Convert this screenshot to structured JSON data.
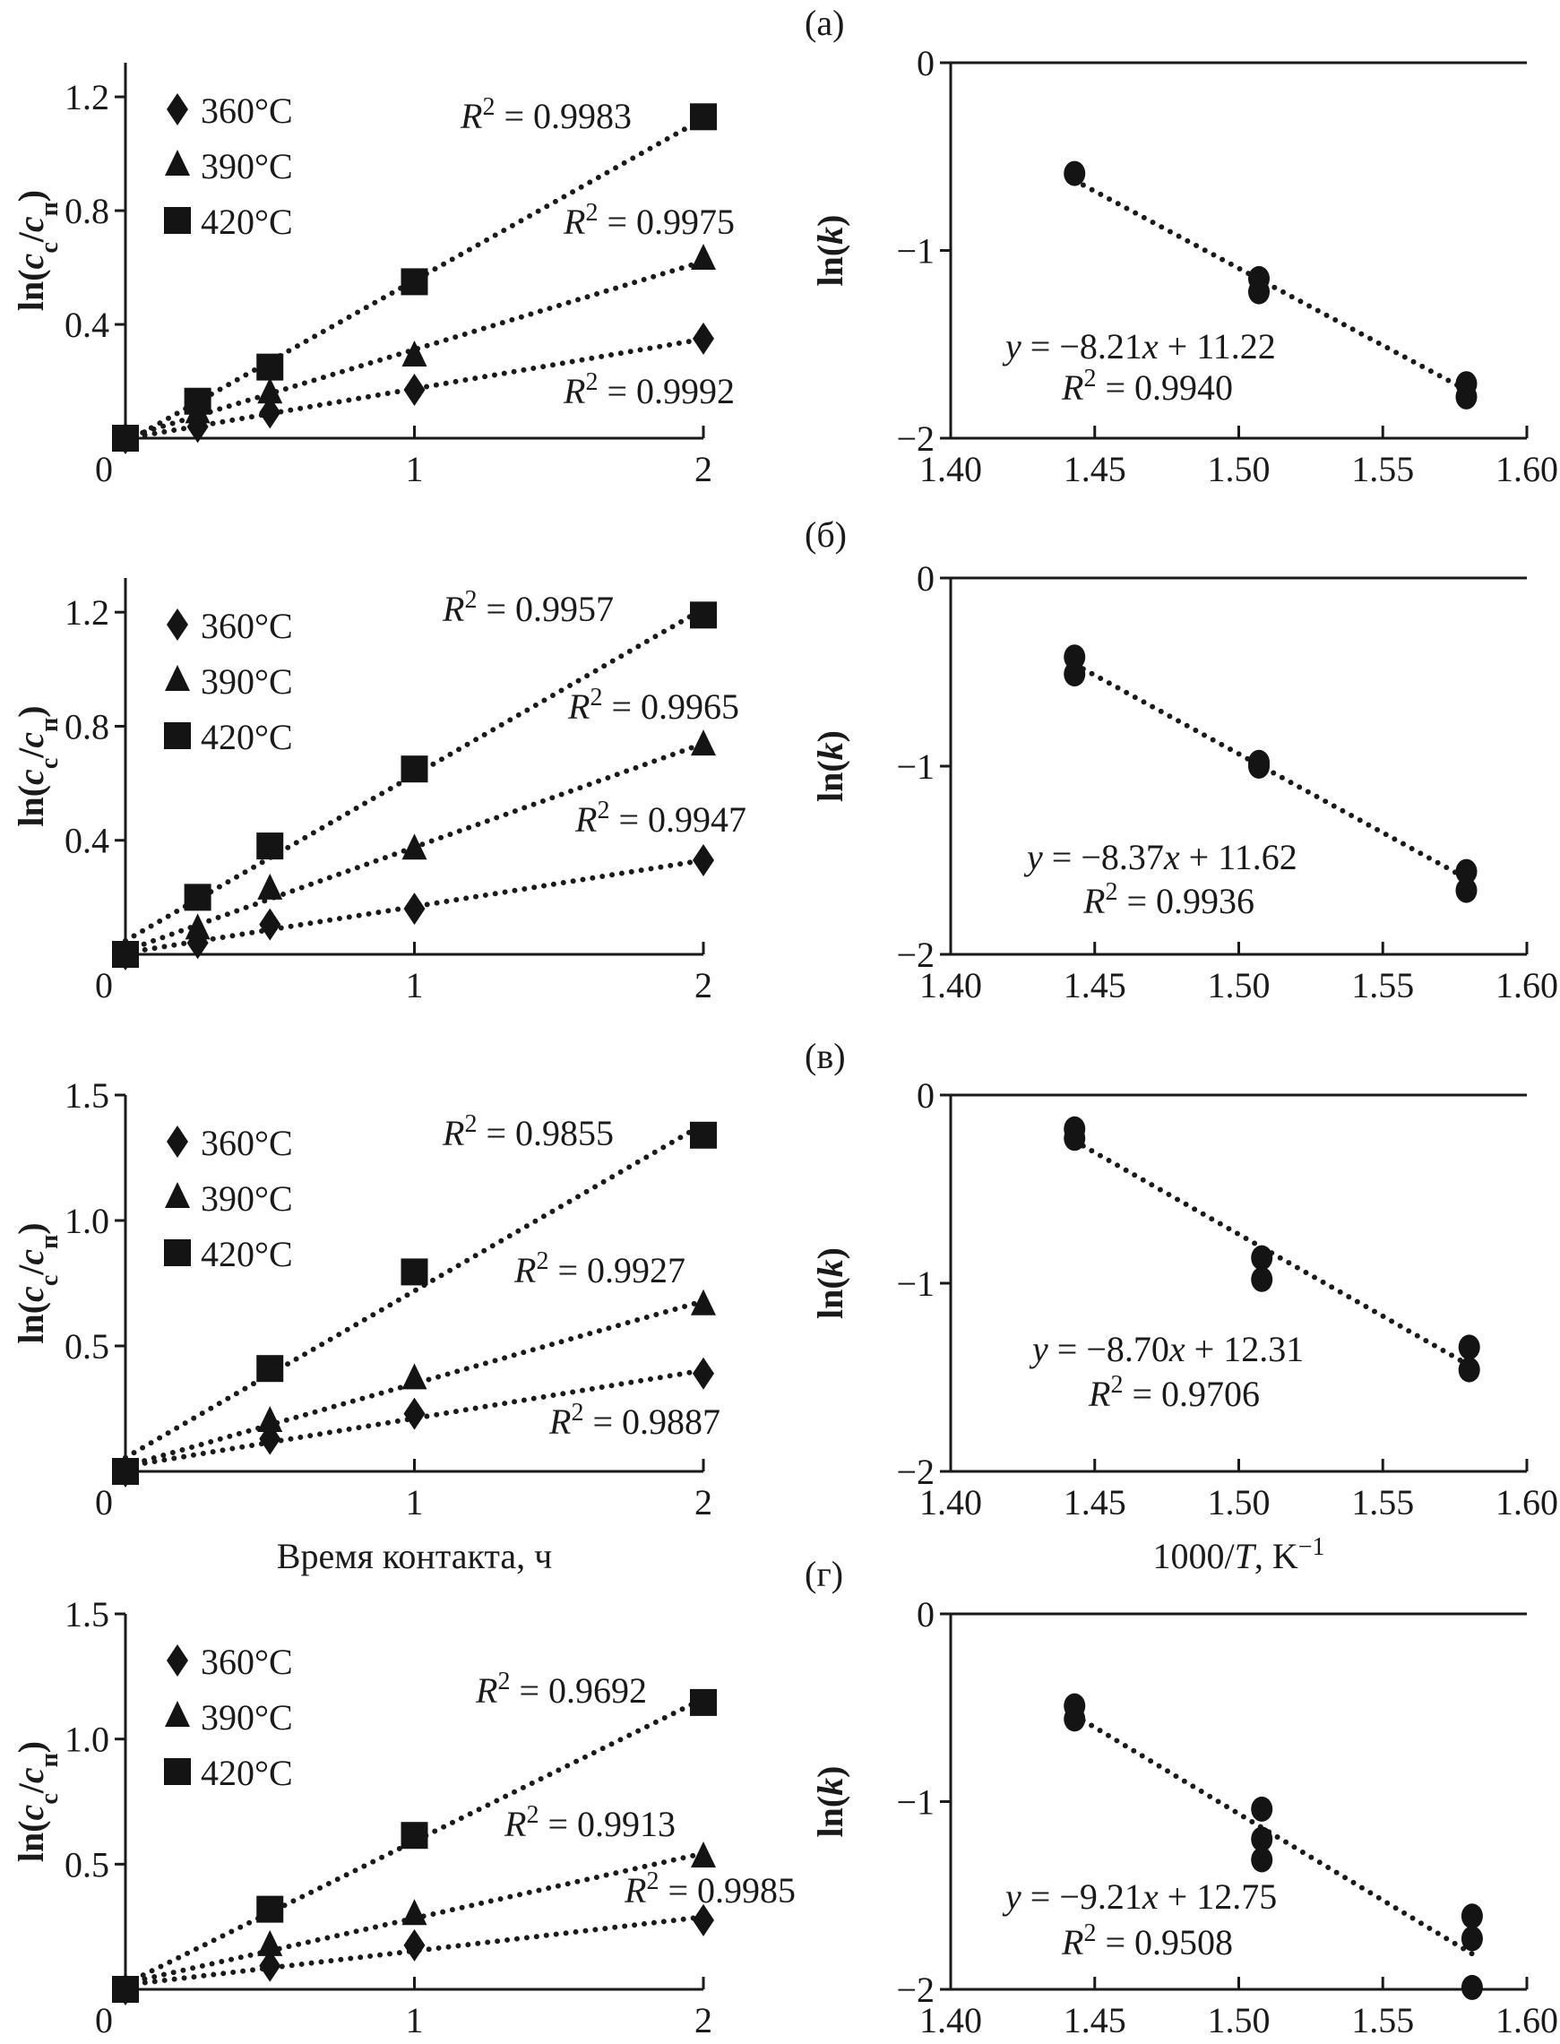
{
  "chart_data": [
    {
      "type": "scatter",
      "panel": "а",
      "side": "left",
      "ylabel": "ln(cс/cп)",
      "xlabel": "",
      "xlim": [
        0,
        2
      ],
      "ylim": [
        0,
        1.32
      ],
      "xticks": [
        "0",
        "1",
        "2"
      ],
      "yticks": [
        "0.4",
        "0.8",
        "1.2"
      ],
      "legend": "top-left",
      "fit": "linear (dotted)",
      "series": [
        {
          "name": "360°C",
          "marker": "diamond",
          "x": [
            0,
            0.25,
            0.5,
            1,
            2
          ],
          "y": [
            0,
            0.04,
            0.09,
            0.17,
            0.35
          ],
          "r2": "R² = 0.9992"
        },
        {
          "name": "390°C",
          "marker": "triangle",
          "x": [
            0,
            0.25,
            0.5,
            1,
            2
          ],
          "y": [
            0,
            0.09,
            0.16,
            0.29,
            0.63
          ],
          "r2": "R² = 0.9975"
        },
        {
          "name": "420°C",
          "marker": "square",
          "x": [
            0,
            0.25,
            0.5,
            1,
            2
          ],
          "y": [
            0,
            0.13,
            0.25,
            0.55,
            1.13
          ],
          "r2": "R² = 0.9983"
        }
      ]
    },
    {
      "type": "scatter",
      "panel": "а",
      "side": "right",
      "panel_label": "(а)",
      "ylabel": "ln(k)",
      "xlabel": "",
      "xlim": [
        1.4,
        1.6
      ],
      "ylim": [
        -2,
        0
      ],
      "xticks": [
        "1.40",
        "1.45",
        "1.50",
        "1.55",
        "1.60"
      ],
      "yticks": [
        "0",
        "−1",
        "−2"
      ],
      "x": [
        1.443,
        1.507,
        1.507,
        1.579,
        1.579
      ],
      "y": [
        -0.59,
        -1.15,
        -1.22,
        -1.71,
        -1.78
      ],
      "fit": {
        "slope": -8.21,
        "intercept": 11.22
      },
      "equation": "y = −8.21x + 11.22",
      "r2": "R² = 0.9940"
    },
    {
      "type": "scatter",
      "panel": "б",
      "side": "left",
      "ylabel": "ln(cс/cп)",
      "xlabel": "",
      "xlim": [
        0,
        2
      ],
      "ylim": [
        0,
        1.32
      ],
      "xticks": [
        "0",
        "1",
        "2"
      ],
      "yticks": [
        "0.4",
        "0.8",
        "1.2"
      ],
      "legend": "top-left",
      "fit": "linear (dotted)",
      "series": [
        {
          "name": "360°C",
          "marker": "diamond",
          "x": [
            0,
            0.25,
            0.5,
            1,
            2
          ],
          "y": [
            0,
            0.04,
            0.105,
            0.16,
            0.33
          ],
          "r2": "R² = 0.9947"
        },
        {
          "name": "390°C",
          "marker": "triangle",
          "x": [
            0,
            0.25,
            0.5,
            1,
            2
          ],
          "y": [
            0,
            0.09,
            0.23,
            0.37,
            0.735
          ],
          "r2": "R² = 0.9965"
        },
        {
          "name": "420°C",
          "marker": "square",
          "x": [
            0,
            0.25,
            0.5,
            1,
            2
          ],
          "y": [
            0,
            0.2,
            0.38,
            0.65,
            1.19
          ],
          "r2": "R² = 0.9957"
        }
      ]
    },
    {
      "type": "scatter",
      "panel": "б",
      "side": "right",
      "panel_label": "(б)",
      "ylabel": "ln(k)",
      "xlabel": "",
      "xlim": [
        1.4,
        1.6
      ],
      "ylim": [
        -2,
        0
      ],
      "xticks": [
        "1.40",
        "1.45",
        "1.50",
        "1.55",
        "1.60"
      ],
      "yticks": [
        "0",
        "−1",
        "−2"
      ],
      "x": [
        1.443,
        1.443,
        1.507,
        1.507,
        1.579,
        1.579
      ],
      "y": [
        -0.42,
        -0.51,
        -0.98,
        -1.0,
        -1.56,
        -1.66
      ],
      "fit": {
        "slope": -8.37,
        "intercept": 11.62
      },
      "equation": "y = −8.37x + 11.62",
      "r2": "R² = 0.9936"
    },
    {
      "type": "scatter",
      "panel": "в",
      "side": "left",
      "ylabel": "ln(cс/cп)",
      "xlabel": "Время контакта, ч",
      "xlim": [
        0,
        2
      ],
      "ylim": [
        0,
        1.5
      ],
      "xticks": [
        "0",
        "1",
        "2"
      ],
      "yticks": [
        "0.5",
        "1.0",
        "1.5"
      ],
      "legend": "top-left",
      "fit": "linear (dotted)",
      "series": [
        {
          "name": "360°C",
          "marker": "diamond",
          "x": [
            0,
            0.5,
            1,
            2
          ],
          "y": [
            0,
            0.13,
            0.23,
            0.39
          ],
          "r2": "R² = 0.9887"
        },
        {
          "name": "390°C",
          "marker": "triangle",
          "x": [
            0,
            0.5,
            1,
            2
          ],
          "y": [
            0,
            0.2,
            0.37,
            0.665
          ],
          "r2": "R² = 0.9927"
        },
        {
          "name": "420°C",
          "marker": "square",
          "x": [
            0,
            0.5,
            1,
            2
          ],
          "y": [
            0,
            0.41,
            0.795,
            1.34
          ],
          "r2": "R² = 0.9855"
        }
      ]
    },
    {
      "type": "scatter",
      "panel": "в",
      "side": "right",
      "panel_label": "(в)",
      "ylabel": "ln(k)",
      "xlabel": "1000/T, K⁻¹",
      "xlim": [
        1.4,
        1.6
      ],
      "ylim": [
        -2,
        0
      ],
      "xticks": [
        "1.40",
        "1.45",
        "1.50",
        "1.55",
        "1.60"
      ],
      "yticks": [
        "0",
        "−1",
        "−2"
      ],
      "x": [
        1.443,
        1.443,
        1.508,
        1.508,
        1.58,
        1.58
      ],
      "y": [
        -0.18,
        -0.23,
        -0.865,
        -0.98,
        -1.34,
        -1.46
      ],
      "fit": {
        "slope": -8.7,
        "intercept": 12.31
      },
      "equation": "y = −8.70x + 12.31",
      "r2": "R² = 0.9706"
    },
    {
      "type": "scatter",
      "panel": "г",
      "side": "left",
      "ylabel": "ln(cс/cп)",
      "xlabel": "",
      "xlim": [
        0,
        2
      ],
      "ylim": [
        0,
        1.5
      ],
      "xticks": [
        "0",
        "1",
        "2"
      ],
      "yticks": [
        "0.5",
        "1.0",
        "1.5"
      ],
      "legend": "top-left",
      "fit": "linear (dotted)",
      "series": [
        {
          "name": "360°C",
          "marker": "diamond",
          "x": [
            0,
            0.5,
            1,
            2
          ],
          "y": [
            0,
            0.094,
            0.176,
            0.276
          ],
          "r2": "R² = 0.9985"
        },
        {
          "name": "390°C",
          "marker": "triangle",
          "x": [
            0,
            0.5,
            1,
            2
          ],
          "y": [
            0,
            0.176,
            0.3,
            0.53
          ],
          "r2": "R² = 0.9913"
        },
        {
          "name": "420°C",
          "marker": "square",
          "x": [
            0,
            0.5,
            1,
            2
          ],
          "y": [
            0,
            0.32,
            0.615,
            1.146
          ],
          "r2": "R² = 0.9692"
        }
      ]
    },
    {
      "type": "scatter",
      "panel": "г",
      "side": "right",
      "panel_label": "(г)",
      "ylabel": "ln(k)",
      "xlabel": "",
      "xlim": [
        1.4,
        1.6
      ],
      "ylim": [
        -2,
        0
      ],
      "xticks": [
        "1.40",
        "1.45",
        "1.50",
        "1.55",
        "1.60"
      ],
      "yticks": [
        "0",
        "−1",
        "−2"
      ],
      "x": [
        1.443,
        1.443,
        1.508,
        1.508,
        1.508,
        1.581,
        1.581,
        1.581
      ],
      "y": [
        -0.49,
        -0.56,
        -1.04,
        -1.2,
        -1.31,
        -1.61,
        -1.73,
        -1.99
      ],
      "fit": {
        "slope": -9.21,
        "intercept": 12.75
      },
      "equation": "y = −9.21x + 12.75",
      "r2": "R² = 0.9508"
    }
  ]
}
